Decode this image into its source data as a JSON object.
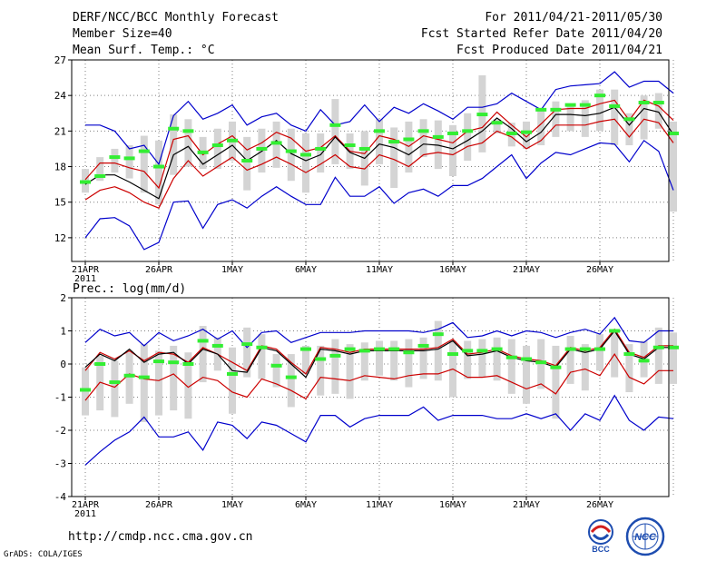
{
  "header": {
    "title": "DERF/NCC/BCC Monthly Forecast",
    "member_size": "Member Size=40",
    "variable": "Mean Surf. Temp.: °C",
    "period": "For 2011/04/21-2011/05/30",
    "fcst_started": "Fcst Started Refer Date 2011/04/20",
    "fcst_produced": "Fcst Produced Date 2011/04/21"
  },
  "footer": {
    "url": "http://cmdp.ncc.cma.gov.cn",
    "grads": "GrADS: COLA/IGES",
    "logo_bcc": "BCC",
    "logo_ncc": "NCC"
  },
  "colors": {
    "envelope": "#0000cc",
    "spread": "#cc0000",
    "mean": "#000000",
    "box": "#d4d4d4",
    "observed": "#33ee33",
    "grid": "#808080"
  },
  "chart_data": [
    {
      "type": "line",
      "title": "Mean Surf. Temp.: °C",
      "x_tick_labels": [
        "21APR",
        "26APR",
        "1MAY",
        "6MAY",
        "11MAY",
        "16MAY",
        "21MAY",
        "26MAY"
      ],
      "x_year_label": "2011",
      "ylim": [
        10,
        27
      ],
      "y_ticks": [
        12,
        15,
        18,
        21,
        24,
        27
      ],
      "series": [
        {
          "name": "max",
          "values": [
            21.5,
            21.5,
            21.0,
            19.5,
            19.8,
            18.2,
            22.3,
            23.5,
            22.0,
            22.5,
            23.2,
            21.5,
            22.2,
            22.5,
            21.5,
            21.0,
            22.8,
            21.5,
            21.8,
            23.2,
            21.8,
            23.0,
            22.5,
            23.3,
            22.7,
            22.0,
            23.0,
            23.0,
            23.3,
            24.2,
            23.5,
            22.8,
            24.5,
            24.8,
            24.9,
            25.0,
            26.0,
            24.7,
            25.2,
            25.2,
            24.2
          ]
        },
        {
          "name": "upper",
          "values": [
            16.9,
            18.3,
            18.3,
            17.9,
            17.6,
            16.2,
            20.3,
            20.6,
            19.0,
            19.9,
            20.6,
            19.4,
            20.0,
            20.9,
            20.4,
            19.3,
            19.6,
            20.6,
            19.3,
            19.1,
            20.6,
            20.3,
            19.7,
            20.6,
            20.3,
            20.0,
            21.0,
            21.3,
            22.6,
            21.5,
            20.5,
            21.6,
            22.8,
            22.9,
            22.9,
            23.3,
            23.6,
            21.9,
            23.6,
            23.1,
            21.9
          ]
        },
        {
          "name": "mean",
          "values": [
            16.5,
            17.3,
            17.3,
            16.7,
            16.0,
            15.3,
            19.0,
            19.7,
            18.2,
            19.0,
            19.8,
            18.5,
            19.3,
            20.2,
            19.1,
            18.5,
            19.0,
            20.5,
            19.2,
            18.7,
            19.9,
            19.6,
            19.0,
            19.9,
            19.8,
            19.5,
            20.2,
            21.0,
            22.1,
            21.2,
            20.1,
            20.9,
            22.4,
            22.4,
            22.3,
            22.5,
            23.0,
            21.5,
            22.9,
            22.6,
            20.7
          ]
        },
        {
          "name": "lower",
          "values": [
            15.2,
            16.0,
            16.3,
            15.8,
            15.0,
            14.5,
            17.0,
            18.5,
            17.2,
            18.0,
            18.8,
            17.7,
            18.2,
            18.8,
            18.2,
            17.5,
            18.2,
            19.0,
            18.0,
            17.8,
            19.0,
            18.6,
            18.0,
            19.0,
            19.2,
            19.0,
            19.7,
            20.0,
            21.0,
            20.5,
            19.5,
            20.2,
            21.5,
            21.5,
            21.5,
            21.8,
            22.0,
            20.5,
            22.0,
            21.7,
            20.0
          ]
        },
        {
          "name": "min",
          "values": [
            12.0,
            13.6,
            13.7,
            13.0,
            11.0,
            11.6,
            15.0,
            15.1,
            12.8,
            14.8,
            15.2,
            14.5,
            15.5,
            16.3,
            15.5,
            14.8,
            14.8,
            17.1,
            15.5,
            15.5,
            16.3,
            14.9,
            15.8,
            16.1,
            15.5,
            16.4,
            16.4,
            17.0,
            18.0,
            19.0,
            17.0,
            18.3,
            19.2,
            19.0,
            19.5,
            20.0,
            19.9,
            18.4,
            20.2,
            19.3,
            16.0
          ]
        },
        {
          "name": "observed",
          "values": [
            16.7,
            17.2,
            18.8,
            18.7,
            19.3,
            18.0,
            21.2,
            21.0,
            19.2,
            19.8,
            20.2,
            18.5,
            19.5,
            20.0,
            19.3,
            19.0,
            19.5,
            21.5,
            19.8,
            19.5,
            21.0,
            20.1,
            20.3,
            21.0,
            20.5,
            20.8,
            21.0,
            22.4,
            21.7,
            20.8,
            20.9,
            22.8,
            22.8,
            23.2,
            23.2,
            24.0,
            23.1,
            22.0,
            23.4,
            23.4,
            20.8
          ]
        },
        {
          "name": "box_high",
          "values": [
            17.8,
            18.8,
            19.5,
            19.8,
            20.6,
            20.2,
            22.4,
            22.0,
            20.5,
            21.2,
            21.8,
            20.5,
            21.2,
            21.8,
            21.2,
            20.8,
            20.8,
            23.7,
            20.8,
            21.0,
            22.0,
            21.3,
            21.8,
            22.0,
            21.9,
            21.5,
            22.5,
            25.7,
            22.0,
            21.7,
            21.8,
            22.8,
            23.5,
            23.3,
            23.6,
            24.5,
            24.5,
            22.5,
            24.0,
            24.2,
            21.8
          ]
        },
        {
          "name": "box_low",
          "values": [
            15.8,
            16.8,
            17.5,
            17.0,
            15.8,
            14.8,
            17.3,
            18.0,
            17.8,
            17.8,
            18.5,
            16.0,
            17.5,
            17.9,
            16.8,
            15.8,
            17.5,
            18.2,
            17.8,
            16.4,
            18.2,
            16.2,
            17.5,
            18.8,
            17.8,
            17.2,
            18.5,
            19.2,
            20.8,
            19.7,
            19.5,
            19.8,
            20.5,
            21.0,
            20.5,
            21.0,
            19.8,
            19.8,
            20.3,
            21.2,
            14.2
          ]
        }
      ]
    },
    {
      "type": "line",
      "title": "Prec.: log(mm/d)",
      "x_tick_labels": [
        "21APR",
        "26APR",
        "1MAY",
        "6MAY",
        "11MAY",
        "16MAY",
        "21MAY",
        "26MAY"
      ],
      "x_year_label": "2011",
      "ylim": [
        -4,
        2
      ],
      "y_ticks": [
        -4,
        -3,
        -2,
        -1,
        0,
        1,
        2
      ],
      "series": [
        {
          "name": "max",
          "values": [
            0.65,
            1.05,
            0.85,
            0.95,
            0.55,
            0.95,
            0.7,
            0.85,
            1.05,
            0.75,
            1.0,
            0.5,
            0.95,
            1.0,
            0.65,
            0.8,
            0.95,
            0.95,
            0.95,
            1.0,
            1.0,
            1.0,
            1.0,
            0.95,
            1.05,
            1.25,
            0.8,
            0.85,
            1.0,
            0.85,
            1.0,
            0.95,
            0.8,
            0.95,
            1.05,
            0.9,
            1.4,
            0.7,
            0.65,
            1.0,
            1.0
          ]
        },
        {
          "name": "upper",
          "values": [
            -0.2,
            0.35,
            0.15,
            0.4,
            0.1,
            0.35,
            0.3,
            0.05,
            0.5,
            0.3,
            0.05,
            -0.2,
            0.55,
            0.45,
            0.05,
            -0.3,
            0.5,
            0.45,
            0.35,
            0.45,
            0.45,
            0.45,
            0.45,
            0.45,
            0.5,
            0.75,
            0.3,
            0.35,
            0.45,
            0.25,
            0.15,
            0.1,
            -0.05,
            0.5,
            0.4,
            0.5,
            1.05,
            0.35,
            0.2,
            0.55,
            0.55
          ]
        },
        {
          "name": "mean",
          "values": [
            -0.1,
            0.3,
            0.1,
            0.45,
            0.05,
            0.3,
            0.35,
            0.0,
            0.45,
            0.3,
            -0.2,
            -0.25,
            0.5,
            0.4,
            0.0,
            -0.4,
            0.45,
            0.4,
            0.3,
            0.4,
            0.4,
            0.4,
            0.4,
            0.4,
            0.45,
            0.7,
            0.25,
            0.3,
            0.4,
            0.2,
            0.1,
            0.05,
            -0.1,
            0.45,
            0.35,
            0.45,
            1.0,
            0.3,
            0.15,
            0.5,
            0.5
          ]
        },
        {
          "name": "lower",
          "values": [
            -1.1,
            -0.55,
            -0.7,
            -0.3,
            -0.45,
            -0.5,
            -0.3,
            -0.7,
            -0.4,
            -0.5,
            -0.85,
            -1.0,
            -0.45,
            -0.6,
            -0.8,
            -1.05,
            -0.4,
            -0.45,
            -0.5,
            -0.35,
            -0.4,
            -0.45,
            -0.35,
            -0.3,
            -0.3,
            -0.15,
            -0.4,
            -0.4,
            -0.35,
            -0.55,
            -0.75,
            -0.6,
            -0.9,
            -0.25,
            -0.15,
            -0.35,
            0.3,
            -0.4,
            -0.6,
            -0.2,
            -0.2
          ]
        },
        {
          "name": "min",
          "values": [
            -3.05,
            -2.65,
            -2.3,
            -2.05,
            -1.6,
            -2.2,
            -2.2,
            -2.05,
            -2.6,
            -1.75,
            -1.85,
            -2.25,
            -1.75,
            -1.85,
            -2.1,
            -2.35,
            -1.55,
            -1.55,
            -1.9,
            -1.65,
            -1.55,
            -1.55,
            -1.55,
            -1.3,
            -1.7,
            -1.55,
            -1.55,
            -1.55,
            -1.65,
            -1.65,
            -1.5,
            -1.65,
            -1.5,
            -2.0,
            -1.5,
            -1.7,
            -0.95,
            -1.7,
            -2.0,
            -1.6,
            -1.65
          ]
        },
        {
          "name": "observed",
          "values": [
            -0.78,
            0.0,
            -0.55,
            -0.35,
            -0.4,
            0.08,
            0.05,
            0.0,
            0.7,
            0.55,
            -0.3,
            0.6,
            0.5,
            -0.05,
            -0.4,
            0.45,
            0.15,
            0.25,
            0.45,
            0.4,
            0.45,
            0.45,
            0.35,
            0.55,
            0.9,
            0.3,
            0.4,
            0.4,
            0.45,
            0.2,
            0.15,
            0.05,
            -0.1,
            0.45,
            0.45,
            0.45,
            1.0,
            0.3,
            0.1,
            0.5,
            0.5
          ]
        },
        {
          "name": "box_high",
          "values": [
            -0.1,
            0.25,
            0.1,
            0.35,
            0.6,
            0.4,
            0.55,
            0.35,
            1.15,
            0.8,
            0.5,
            1.1,
            0.9,
            0.3,
            0.3,
            0.55,
            0.55,
            0.75,
            0.6,
            0.65,
            0.7,
            0.7,
            0.75,
            0.8,
            1.3,
            0.7,
            0.7,
            0.75,
            0.8,
            0.75,
            0.55,
            0.75,
            0.55,
            0.85,
            0.6,
            0.9,
            1.05,
            0.6,
            0.7,
            1.1,
            0.95
          ]
        },
        {
          "name": "box_low",
          "values": [
            -1.55,
            -1.4,
            -1.6,
            -1.2,
            -1.75,
            -1.55,
            -1.4,
            -1.65,
            -0.55,
            -0.2,
            -1.5,
            -0.4,
            -0.45,
            -0.7,
            -1.3,
            -0.3,
            -0.95,
            -0.9,
            -1.05,
            -0.5,
            -0.35,
            -0.5,
            -0.7,
            -0.45,
            -0.5,
            -1.0,
            -0.45,
            -0.4,
            -0.5,
            -0.9,
            -1.2,
            -0.75,
            -1.65,
            -0.6,
            -0.8,
            -0.2,
            -0.4,
            -0.85,
            -0.4,
            -0.6,
            -0.6
          ]
        }
      ]
    }
  ]
}
